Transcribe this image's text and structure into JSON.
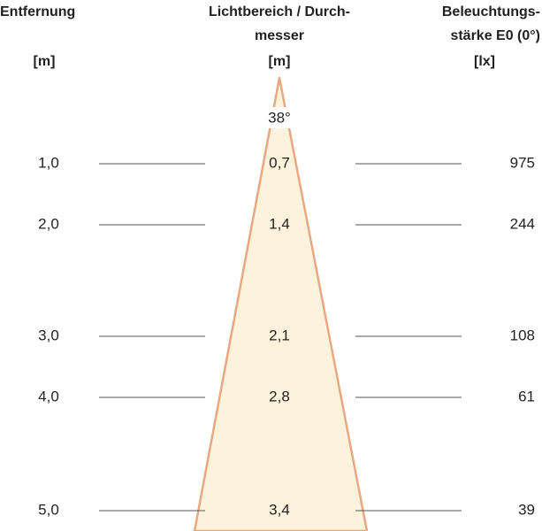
{
  "headers": {
    "distance": {
      "lines": [
        "Entfernung"
      ],
      "unit": "[m]"
    },
    "diameter": {
      "lines": [
        "Lichtbereich / Durch-",
        "messer"
      ],
      "unit": "[m]"
    },
    "illuminance": {
      "lines": [
        "Beleuchtungs-",
        "stärke E0 (0°)"
      ],
      "unit": "[lx]"
    }
  },
  "beam_angle": "38°",
  "rows": [
    {
      "distance": "1,0",
      "diameter": "0,7",
      "illuminance": "975"
    },
    {
      "distance": "2,0",
      "diameter": "1,4",
      "illuminance": "244"
    },
    {
      "distance": "3,0",
      "diameter": "2,1",
      "illuminance": "108"
    },
    {
      "distance": "4,0",
      "diameter": "2,8",
      "illuminance": "61"
    },
    {
      "distance": "5,0",
      "diameter": "3,4",
      "illuminance": "39"
    }
  ]
}
